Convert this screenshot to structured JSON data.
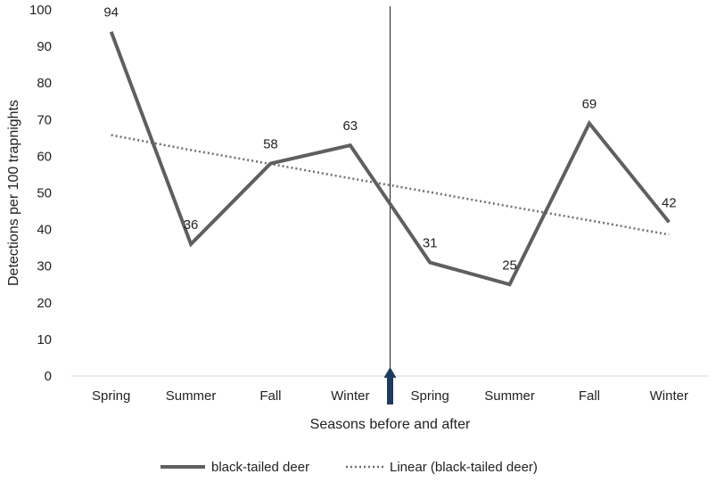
{
  "chart_data": {
    "type": "line",
    "categories": [
      "Spring",
      "Summer",
      "Fall",
      "Winter",
      "Spring",
      "Summer",
      "Fall",
      "Winter"
    ],
    "series": [
      {
        "name": "black-tailed deer",
        "values": [
          94,
          36,
          58,
          63,
          31,
          25,
          69,
          42
        ],
        "data_labels": [
          "94",
          "36",
          "58",
          "63",
          "31",
          "25",
          "69",
          "42"
        ],
        "color": "#5f5f5f",
        "style": "solid"
      },
      {
        "name": "Linear (black-tailed deer)",
        "values": [
          65.8,
          61.7,
          57.9,
          54.0,
          50.2,
          46.3,
          42.5,
          38.6
        ],
        "color": "#6e6e6e",
        "style": "dotted"
      }
    ],
    "xlabel": "Seasons before and after",
    "ylabel": "Detections per 100 trapnights",
    "ylim": [
      0,
      100
    ],
    "yticks": [
      "0",
      "10",
      "20",
      "30",
      "40",
      "50",
      "60",
      "70",
      "80",
      "90",
      "100"
    ],
    "legend_position": "bottom",
    "grid": false,
    "annotations": {
      "vertical_line": "between Winter and Spring",
      "arrow_color": "#1f3a5c"
    }
  }
}
